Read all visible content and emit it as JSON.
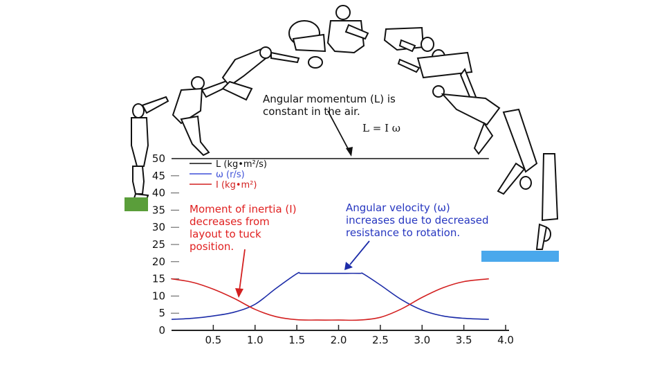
{
  "chart_data": {
    "type": "line",
    "x_ticks": [
      "0.5",
      "1.0",
      "1.5",
      "2.0",
      "2.5",
      "3.0",
      "3.5",
      "4.0"
    ],
    "y_ticks": [
      "0",
      "5",
      "10",
      "15",
      "20",
      "25",
      "30",
      "35",
      "40",
      "45",
      "50"
    ],
    "xlim": [
      0,
      4.0
    ],
    "ylim": [
      0,
      50
    ],
    "grid": false,
    "legend_placement": "top-left",
    "legend": [
      {
        "key": "L",
        "label": "L (kg•m²/s)",
        "color": "#111111"
      },
      {
        "key": "w",
        "label": "ω (r/s)",
        "color": "#3d4fd8"
      },
      {
        "key": "I",
        "label": "I (kg•m²)",
        "color": "#d32020"
      }
    ],
    "series": [
      {
        "key": "L",
        "color": "#111111",
        "x": [
          0.0,
          3.8
        ],
        "y": [
          50,
          50
        ]
      },
      {
        "key": "w",
        "color": "#1c2ca8",
        "x": [
          0.0,
          0.25,
          0.5,
          0.75,
          1.0,
          1.25,
          1.5,
          1.55,
          1.75,
          2.0,
          2.25,
          2.3,
          2.5,
          2.75,
          3.0,
          3.25,
          3.5,
          3.8
        ],
        "y": [
          3.2,
          3.5,
          4.2,
          5.3,
          7.6,
          12.2,
          16.5,
          16.6,
          16.6,
          16.6,
          16.6,
          16.4,
          13.2,
          9.0,
          5.9,
          4.2,
          3.5,
          3.2
        ]
      },
      {
        "key": "I",
        "color": "#d32020",
        "x": [
          0.0,
          0.25,
          0.5,
          0.75,
          1.0,
          1.25,
          1.5,
          1.75,
          2.0,
          2.25,
          2.5,
          2.75,
          3.0,
          3.25,
          3.5,
          3.8
        ],
        "y": [
          15.0,
          14.0,
          12.0,
          9.3,
          6.1,
          4.0,
          3.1,
          3.0,
          3.0,
          3.0,
          3.8,
          6.2,
          9.6,
          12.4,
          14.2,
          15.0
        ]
      }
    ],
    "annotations": {
      "momentum": [
        "Angular momentum (L) is",
        "constant in the air."
      ],
      "equation": "L = I ω",
      "inertia": [
        "Moment of inertia (I)",
        "decreases from",
        "layout to tuck",
        "position."
      ],
      "velocity": [
        "Angular velocity (ω)",
        "increases due to decreased",
        "resistance to rotation."
      ]
    },
    "colors": {
      "inertia_text": "#e02020",
      "velocity_text": "#2636c0",
      "platform_left": "#5a9e3a",
      "platform_right": "#4aa8ec"
    },
    "illustration": "diver-sequence"
  }
}
